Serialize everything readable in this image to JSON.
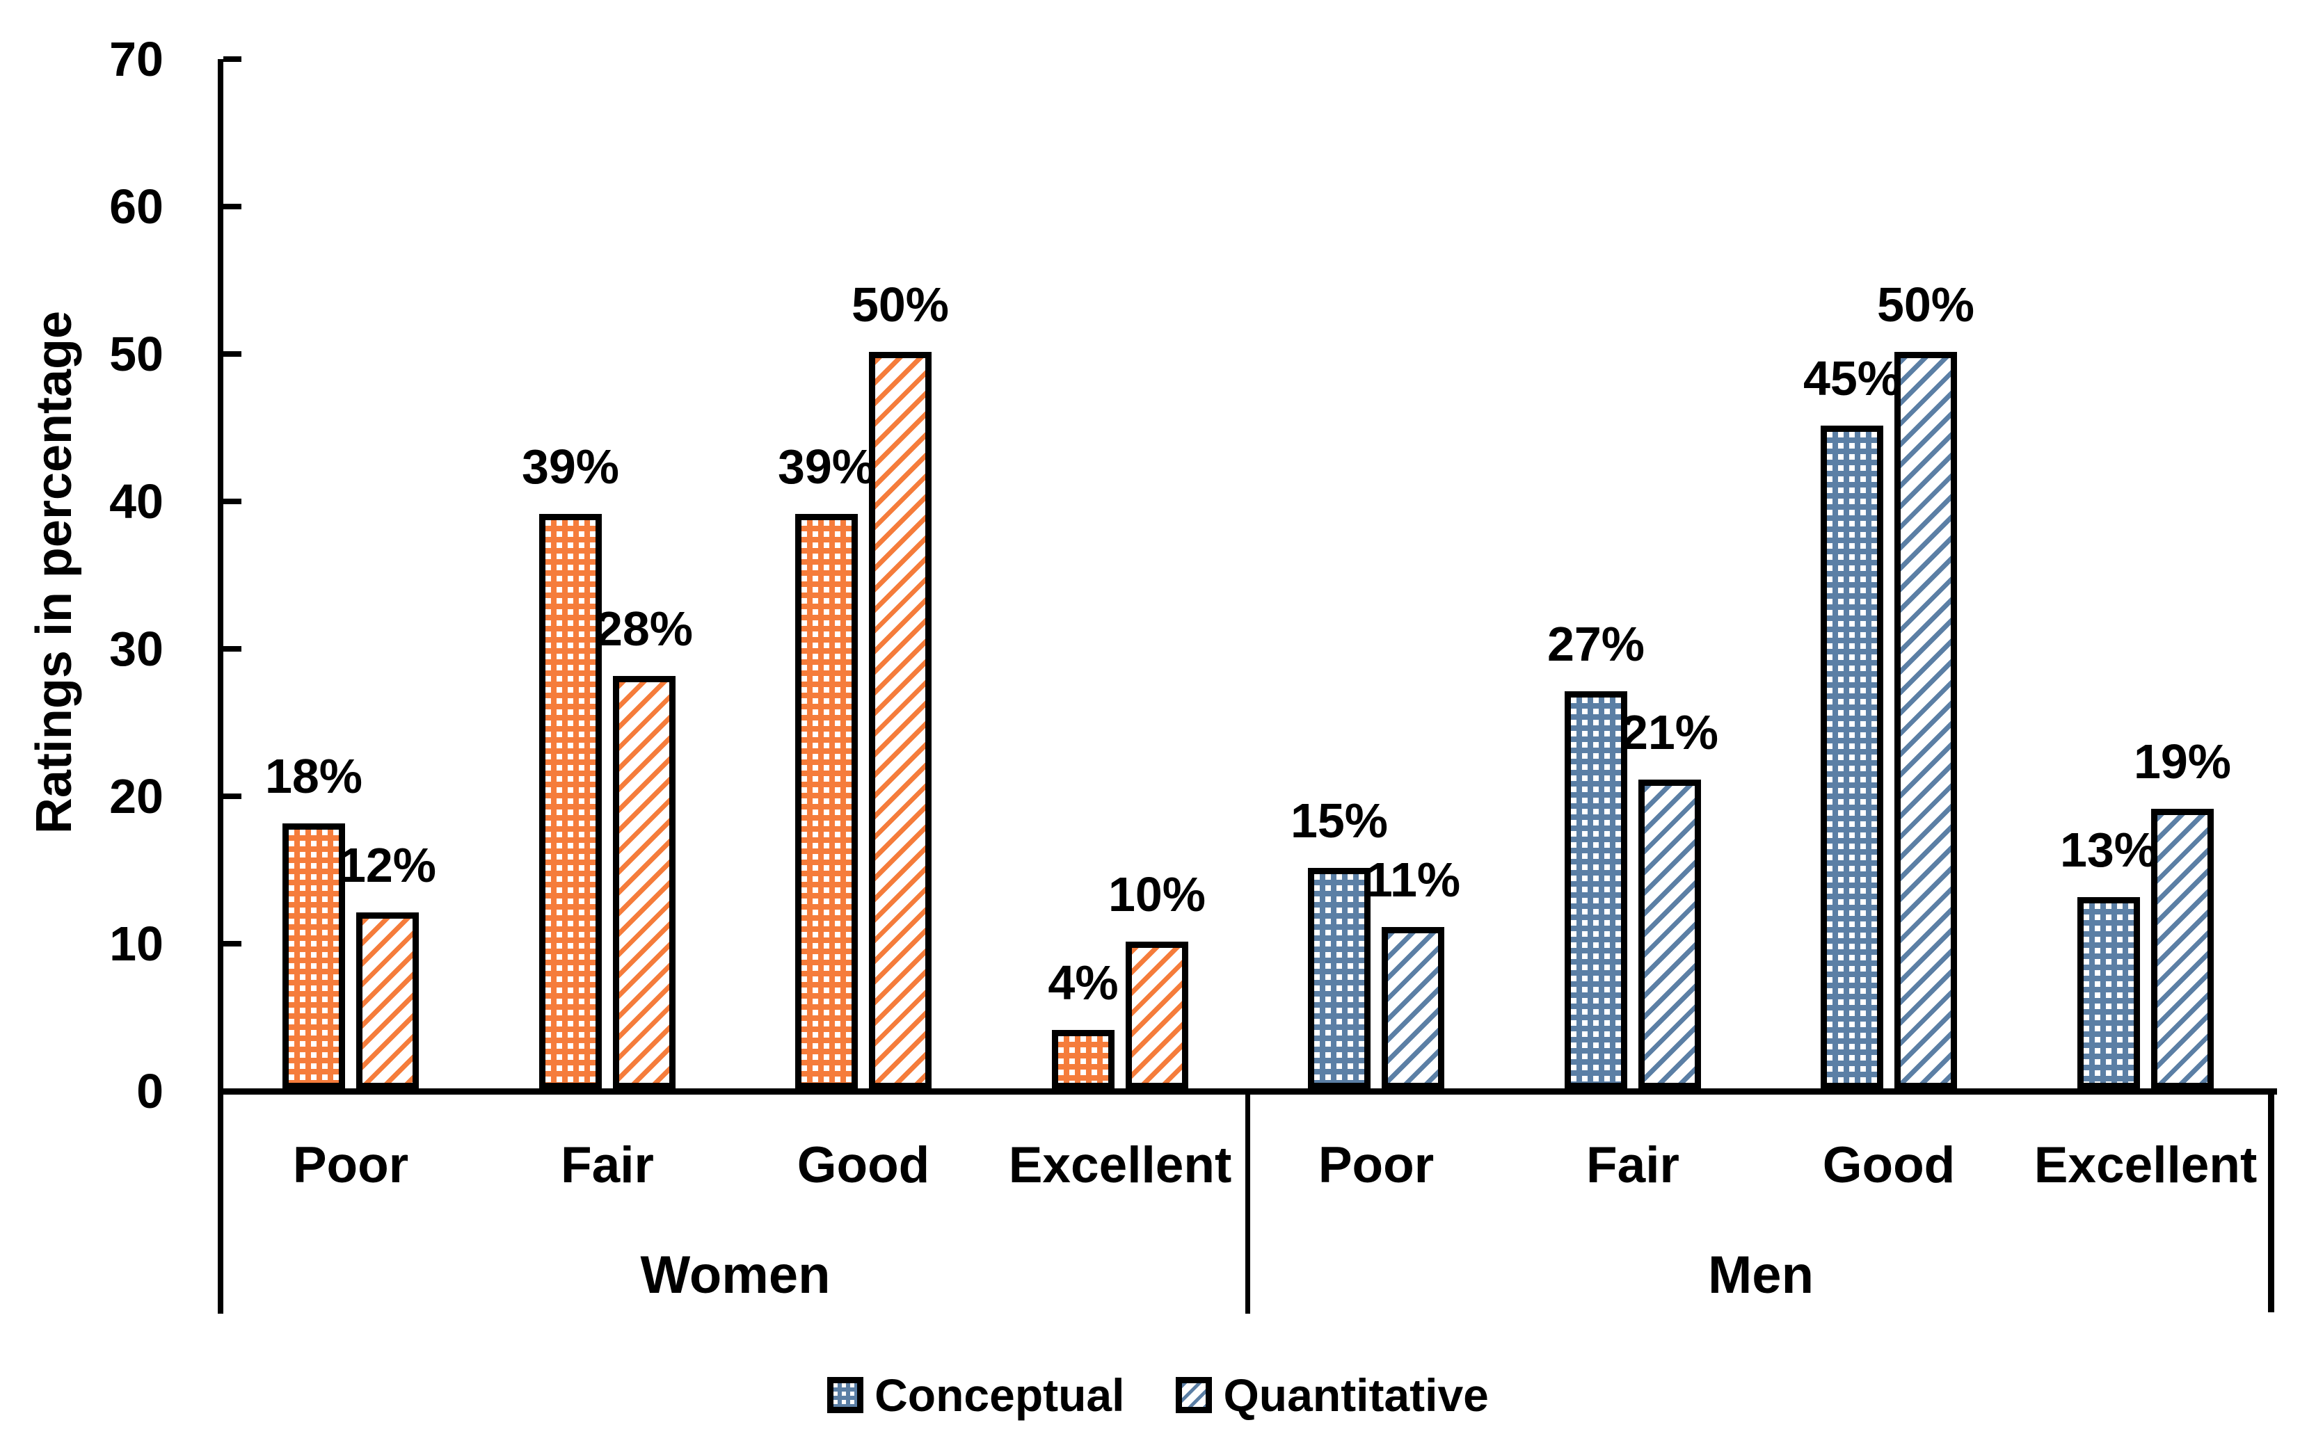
{
  "chart_data": {
    "type": "bar",
    "title": "",
    "xlabel": "",
    "ylabel": "Ratings in percentage",
    "ylim": [
      0,
      70
    ],
    "grid": false,
    "legend_position": "bottom",
    "yticks": [
      {
        "value": 0,
        "label": "0"
      },
      {
        "value": 10,
        "label": "10"
      },
      {
        "value": 20,
        "label": "20"
      },
      {
        "value": 30,
        "label": "30"
      },
      {
        "value": 40,
        "label": "40"
      },
      {
        "value": 50,
        "label": "50"
      },
      {
        "value": 60,
        "label": "60"
      },
      {
        "value": 70,
        "label": "70"
      }
    ],
    "groups": [
      {
        "label": "Women",
        "color": "#F57C3B",
        "categories": [
          "Poor",
          "Fair",
          "Good",
          "Excellent"
        ],
        "series": [
          {
            "name": "Conceptual",
            "pattern": "dots",
            "values": [
              18,
              39,
              39,
              4
            ],
            "labels": [
              "18%",
              "39%",
              "39%",
              "4%"
            ]
          },
          {
            "name": "Quantitative",
            "pattern": "diag",
            "values": [
              12,
              28,
              50,
              10
            ],
            "labels": [
              "12%",
              "28%",
              "50%",
              "10%"
            ]
          }
        ]
      },
      {
        "label": "Men",
        "color": "#5B7FA5",
        "categories": [
          "Poor",
          "Fair",
          "Good",
          "Excellent"
        ],
        "series": [
          {
            "name": "Conceptual",
            "pattern": "dots",
            "values": [
              15,
              27,
              45,
              13
            ],
            "labels": [
              "15%",
              "27%",
              "45%",
              "13%"
            ]
          },
          {
            "name": "Quantitative",
            "pattern": "diag",
            "values": [
              11,
              21,
              50,
              19
            ],
            "labels": [
              "11%",
              "21%",
              "50%",
              "19%"
            ]
          }
        ]
      }
    ],
    "legend": [
      {
        "label": "Conceptual",
        "pattern": "dots"
      },
      {
        "label": "Quantitative",
        "pattern": "diag"
      }
    ],
    "legend_color": "#5B7FA5",
    "axis_color": "#000000",
    "background_color": "#FFFFFF"
  }
}
